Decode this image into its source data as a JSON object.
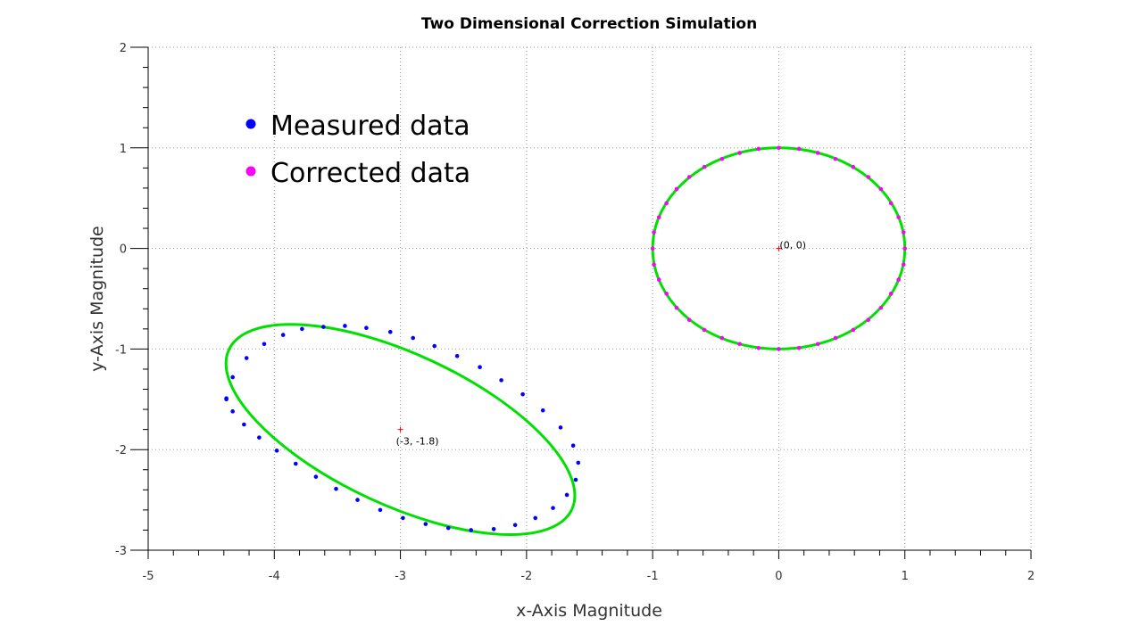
{
  "chart_data": {
    "type": "scatter",
    "title": "Two Dimensional Correction Simulation",
    "xlabel": "x-Axis Magnitude",
    "ylabel": "y-Axis Magnitude",
    "xlim": [
      -5,
      2
    ],
    "ylim": [
      -3,
      2
    ],
    "x_ticks": [
      -5,
      -4,
      -3,
      -2,
      -1,
      0,
      1,
      2
    ],
    "y_ticks": [
      -3,
      -2,
      -1,
      0,
      1,
      2
    ],
    "grid": true,
    "legend": {
      "placement": "top-left",
      "entries": [
        "Measured data",
        "Corrected data"
      ]
    },
    "colors": {
      "measured": "#0000ff",
      "corrected": "#ff00ff",
      "fit": "#00e000",
      "center": "#ff0000"
    },
    "series": [
      {
        "name": "Measured data",
        "fit_ellipse": {
          "cx": -3.0,
          "cy": -1.8,
          "rx": 1.5,
          "ry": 0.75,
          "rotation_deg": -25
        },
        "x": [
          -4.38,
          -4.33,
          -4.22,
          -4.08,
          -3.93,
          -3.78,
          -3.61,
          -3.44,
          -3.27,
          -3.08,
          -2.9,
          -2.73,
          -2.55,
          -2.37,
          -2.2,
          -2.03,
          -1.87,
          -1.73,
          -1.63,
          -1.59,
          -1.61,
          -1.68,
          -1.79,
          -1.93,
          -2.09,
          -2.26,
          -2.44,
          -2.62,
          -2.8,
          -2.98,
          -3.16,
          -3.34,
          -3.51,
          -3.67,
          -3.83,
          -3.98,
          -4.12,
          -4.24,
          -4.33,
          -4.38
        ],
        "y": [
          -1.49,
          -1.28,
          -1.09,
          -0.95,
          -0.86,
          -0.8,
          -0.78,
          -0.77,
          -0.79,
          -0.83,
          -0.89,
          -0.97,
          -1.07,
          -1.18,
          -1.31,
          -1.45,
          -1.61,
          -1.78,
          -1.96,
          -2.13,
          -2.3,
          -2.45,
          -2.58,
          -2.68,
          -2.75,
          -2.79,
          -2.8,
          -2.78,
          -2.74,
          -2.68,
          -2.6,
          -2.5,
          -2.39,
          -2.27,
          -2.14,
          -2.01,
          -1.88,
          -1.75,
          -1.62,
          -1.5
        ]
      },
      {
        "name": "Corrected data",
        "fit_circle": {
          "cx": 0,
          "cy": 0,
          "r": 1.0
        },
        "x": [
          1.0,
          0.99,
          0.95,
          0.89,
          0.81,
          0.71,
          0.59,
          0.45,
          0.31,
          0.16,
          0.0,
          -0.16,
          -0.31,
          -0.45,
          -0.59,
          -0.71,
          -0.81,
          -0.89,
          -0.95,
          -0.99,
          -1.0,
          -0.99,
          -0.95,
          -0.89,
          -0.81,
          -0.71,
          -0.59,
          -0.45,
          -0.31,
          -0.16,
          0.0,
          0.16,
          0.31,
          0.45,
          0.59,
          0.71,
          0.81,
          0.89,
          0.95,
          0.99
        ],
        "y": [
          0.0,
          0.16,
          0.31,
          0.45,
          0.59,
          0.71,
          0.81,
          0.89,
          0.95,
          0.99,
          1.0,
          0.99,
          0.95,
          0.89,
          0.81,
          0.71,
          0.59,
          0.45,
          0.31,
          0.16,
          0.0,
          -0.16,
          -0.31,
          -0.45,
          -0.59,
          -0.71,
          -0.81,
          -0.89,
          -0.95,
          -0.99,
          -1.0,
          -0.99,
          -0.95,
          -0.89,
          -0.81,
          -0.71,
          -0.59,
          -0.45,
          -0.31,
          -0.16
        ]
      }
    ],
    "annotations": [
      {
        "text": "(-3, -1.8)",
        "x": -3,
        "y": -1.8
      },
      {
        "text": "(0, 0)",
        "x": 0,
        "y": 0
      }
    ]
  }
}
